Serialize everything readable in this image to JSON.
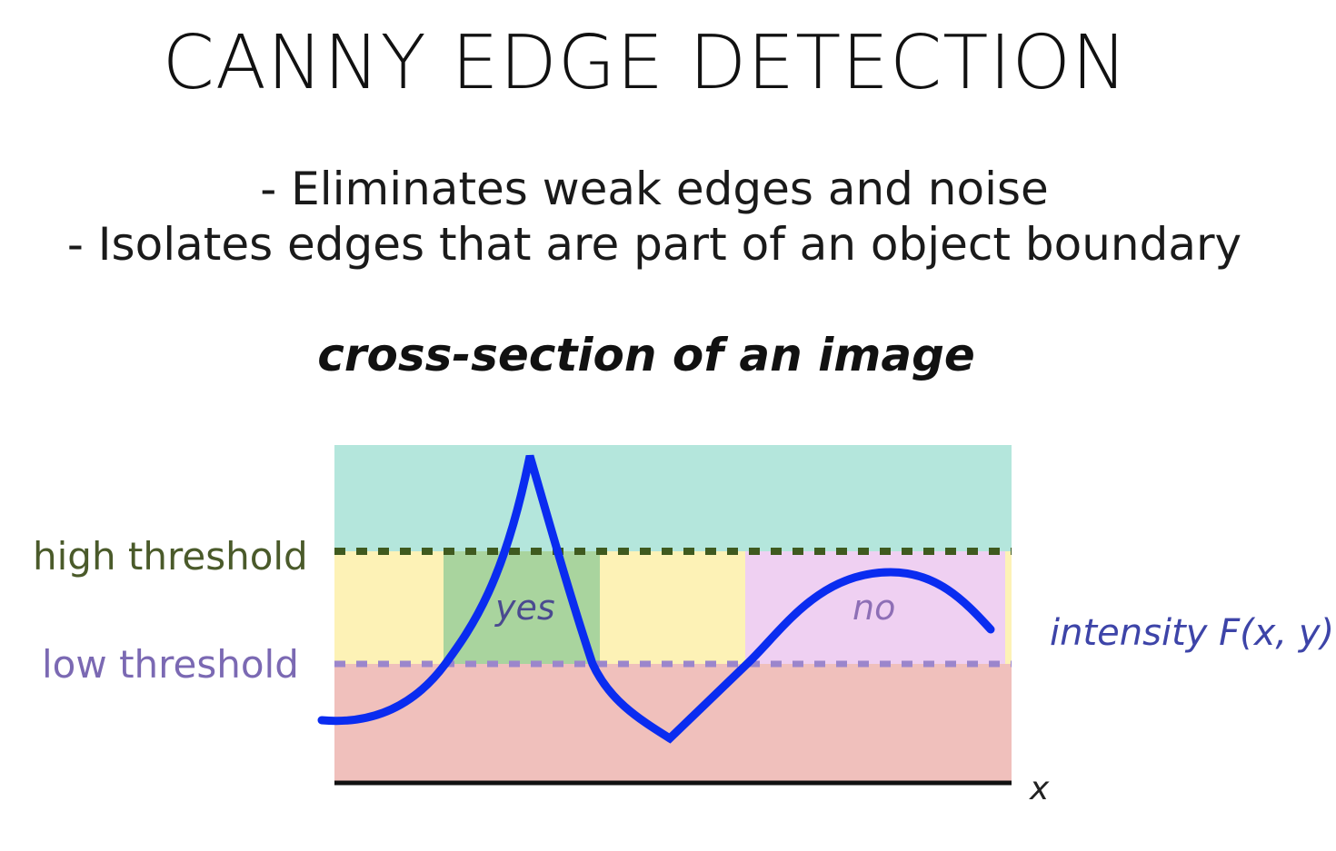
{
  "slide": {
    "title": "CANNY EDGE DETECTION",
    "bullets": [
      "- Eliminates weak edges and noise",
      "- Isolates edges that are part of an object boundary"
    ],
    "subtitle": "cross-section of an image"
  },
  "diagram": {
    "high_label": "high threshold",
    "low_label": "low threshold",
    "curve_label": "intensity F(x, y)",
    "yes_label": "yes",
    "no_label": "no",
    "axis_label": "x"
  },
  "colors": {
    "above_high": "#b4e6dc",
    "between": "#fdf2b6",
    "below_low": "#f0c0bc",
    "yes_region": "#a9d49e",
    "no_region": "#efd0f2",
    "curve": "#0a2cf0",
    "high_line": "#3f5a1f",
    "low_line": "#9b86cc"
  }
}
